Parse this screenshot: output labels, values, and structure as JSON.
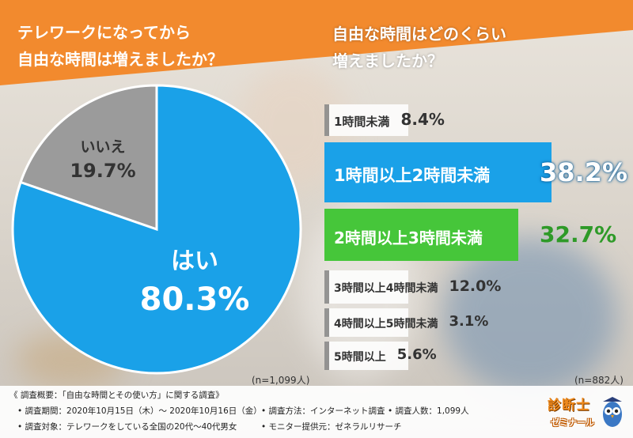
{
  "colors": {
    "orange": "#f28a2e",
    "blue": "#1aa1e8",
    "green": "#46c63a",
    "gray": "#9b9b9b",
    "white": "#ffffff"
  },
  "left_title": [
    "テレワークになってから",
    "自由な時間は増えましたか？"
  ],
  "right_title": [
    "自由な時間はどのくらい",
    "増えましたか？"
  ],
  "chart_data": [
    {
      "type": "pie",
      "title": "テレワークになってから自由な時間は増えましたか？",
      "labels": [
        "はい",
        "いいえ"
      ],
      "values": [
        80.3,
        19.7
      ],
      "value_labels": [
        "80.3%",
        "19.7%"
      ],
      "colors": [
        "#1aa1e8",
        "#9b9b9b"
      ],
      "note": "(n=1,099人)"
    },
    {
      "type": "bar",
      "orientation": "horizontal",
      "title": "自由な時間はどのくらい増えましたか？",
      "categories": [
        "1時間未満",
        "1時間以上2時間未満",
        "2時間以上3時間未満",
        "3時間以上4時間未満",
        "4時間以上5時間未満",
        "5時間以上"
      ],
      "values": [
        8.4,
        38.2,
        32.7,
        12.0,
        3.1,
        5.6
      ],
      "value_labels": [
        "8.4%",
        "38.2%",
        "32.7%",
        "12.0%",
        "3.1%",
        "5.6%"
      ],
      "highlight": [
        "none",
        "blue",
        "green",
        "none",
        "none",
        "none"
      ],
      "note": "(n=882人)"
    }
  ],
  "footer": {
    "title": "《 調査概要：「自由な時間とその使い方」に関する調査》",
    "period": "• 調査期間：2020年10月15日（木）～ 2020年10月16日（金）",
    "method": "• 調査方法：インターネット調査",
    "count": "• 調査人数：1,099人",
    "target": "• 調査対象：テレワークをしている全国の20代～40代男女",
    "provider": "• モニター提供元：ゼネラルリサーチ"
  },
  "logo": {
    "line1": "診断士",
    "line2": "ゼミナール"
  }
}
